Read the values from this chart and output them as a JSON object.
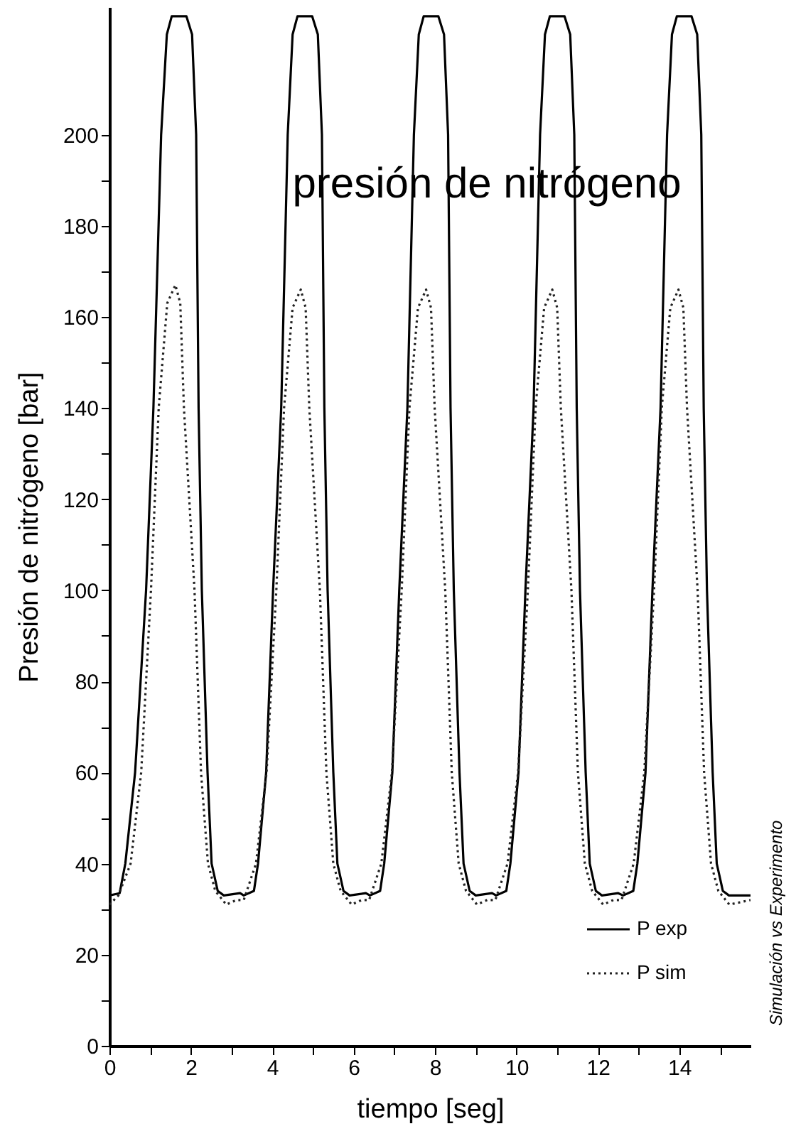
{
  "chart_data": {
    "type": "line",
    "title": "presión de nitrógeno",
    "xlabel": "tiempo [seg]",
    "ylabel": "Presión de nitrógeno [bar]",
    "annotations": [
      "Simulación vs Experimento"
    ],
    "xlim": [
      0,
      15.75
    ],
    "xticks": [
      0,
      {
        "value": 1,
        "label": null
      },
      2,
      {
        "value": 3,
        "label": null
      },
      4,
      {
        "value": 5,
        "label": null
      },
      6,
      {
        "value": 7,
        "label": null
      },
      8,
      {
        "value": 9,
        "label": null
      },
      10,
      {
        "value": 11,
        "label": null
      },
      12,
      {
        "value": 13,
        "label": null
      },
      14,
      {
        "value": 15,
        "label": null
      }
    ],
    "ylim": [
      0,
      228
    ],
    "yticks": [
      0,
      {
        "value": 10,
        "label": null
      },
      20,
      {
        "value": 30,
        "label": null
      },
      40,
      {
        "value": 50,
        "label": null
      },
      60,
      {
        "value": 70,
        "label": null
      },
      80,
      {
        "value": 90,
        "label": null
      },
      100,
      {
        "value": 110,
        "label": null
      },
      120,
      {
        "value": 130,
        "label": null
      },
      140,
      {
        "value": 150,
        "label": null
      },
      160,
      {
        "value": 170,
        "label": null
      },
      180,
      {
        "value": 190,
        "label": null
      },
      200
    ],
    "grid": false,
    "legend": "bottom right",
    "series": [
      {
        "name": "P exp",
        "color": "#000000",
        "line_style": "solid",
        "x": [
          0,
          0.25,
          0.39,
          0.63,
          0.9,
          1.08,
          1.27,
          1.41,
          1.53,
          1.89,
          2.03,
          2.13,
          2.19,
          2.27,
          2.41,
          2.51,
          2.66,
          2.81,
          3.21,
          3.3,
          3.55,
          3.65,
          3.85,
          4.02,
          4.22,
          4.38,
          4.5,
          4.62,
          4.98,
          5.12,
          5.22,
          5.28,
          5.36,
          5.5,
          5.6,
          5.75,
          5.9,
          6.3,
          6.4,
          6.65,
          6.75,
          6.95,
          7.12,
          7.32,
          7.48,
          7.6,
          7.72,
          8.08,
          8.22,
          8.32,
          8.38,
          8.46,
          8.6,
          8.7,
          8.85,
          9.0,
          9.4,
          9.5,
          9.75,
          9.85,
          10.05,
          10.22,
          10.42,
          10.58,
          10.7,
          10.82,
          11.18,
          11.32,
          11.42,
          11.48,
          11.56,
          11.7,
          11.8,
          11.95,
          12.1,
          12.5,
          12.62,
          12.87,
          12.97,
          13.17,
          13.34,
          13.54,
          13.7,
          13.82,
          13.94,
          14.3,
          14.44,
          14.54,
          14.6,
          14.68,
          14.82,
          14.92,
          15.07,
          15.22,
          15.75
        ],
        "values": [
          33,
          33.5,
          40,
          60,
          100,
          140,
          200,
          222,
          226,
          226,
          222,
          200,
          140,
          100,
          60,
          40,
          34,
          33,
          33.5,
          33,
          34,
          40,
          60,
          100,
          140,
          200,
          222,
          226,
          226,
          222,
          200,
          140,
          100,
          60,
          40,
          34,
          33,
          33.5,
          33,
          34,
          40,
          60,
          100,
          140,
          200,
          222,
          226,
          226,
          222,
          200,
          140,
          100,
          60,
          40,
          34,
          33,
          33.5,
          33,
          34,
          40,
          60,
          100,
          140,
          200,
          222,
          226,
          226,
          222,
          200,
          140,
          100,
          60,
          40,
          34,
          33,
          33.5,
          33,
          34,
          40,
          60,
          100,
          140,
          200,
          222,
          226,
          226,
          222,
          200,
          140,
          100,
          60,
          40,
          34,
          33,
          33
        ]
      },
      {
        "name": "P sim",
        "color": "#222222",
        "line_style": "dotted",
        "x": [
          0,
          0.22,
          0.52,
          0.78,
          1.02,
          1.21,
          1.42,
          1.62,
          1.74,
          1.83,
          2.09,
          2.25,
          2.42,
          2.6,
          2.87,
          3.12,
          3.3,
          3.6,
          3.86,
          4.1,
          4.29,
          4.5,
          4.7,
          4.82,
          4.91,
          5.17,
          5.33,
          5.5,
          5.68,
          5.95,
          6.2,
          6.38,
          6.68,
          6.94,
          7.18,
          7.37,
          7.58,
          7.78,
          7.9,
          7.99,
          8.25,
          8.41,
          8.58,
          8.76,
          9.03,
          9.28,
          9.48,
          9.78,
          10.04,
          10.28,
          10.47,
          10.68,
          10.88,
          11.0,
          11.09,
          11.35,
          11.51,
          11.68,
          11.86,
          12.13,
          12.38,
          12.58,
          12.88,
          13.14,
          13.38,
          13.57,
          13.78,
          13.98,
          14.1,
          14.19,
          14.45,
          14.61,
          14.78,
          14.96,
          15.23,
          15.75
        ],
        "values": [
          31,
          33,
          40,
          60,
          100,
          140,
          163,
          167,
          163,
          140,
          100,
          60,
          40,
          34,
          31,
          32,
          32,
          40,
          60,
          100,
          140,
          162,
          166,
          162,
          140,
          100,
          60,
          40,
          34,
          31,
          32,
          32,
          40,
          60,
          100,
          140,
          162,
          166,
          162,
          140,
          100,
          60,
          40,
          34,
          31,
          32,
          32,
          40,
          60,
          100,
          140,
          162,
          166,
          162,
          140,
          100,
          60,
          40,
          34,
          31,
          32,
          32,
          40,
          60,
          100,
          140,
          162,
          166,
          162,
          140,
          100,
          60,
          40,
          34,
          31,
          32
        ]
      }
    ]
  }
}
